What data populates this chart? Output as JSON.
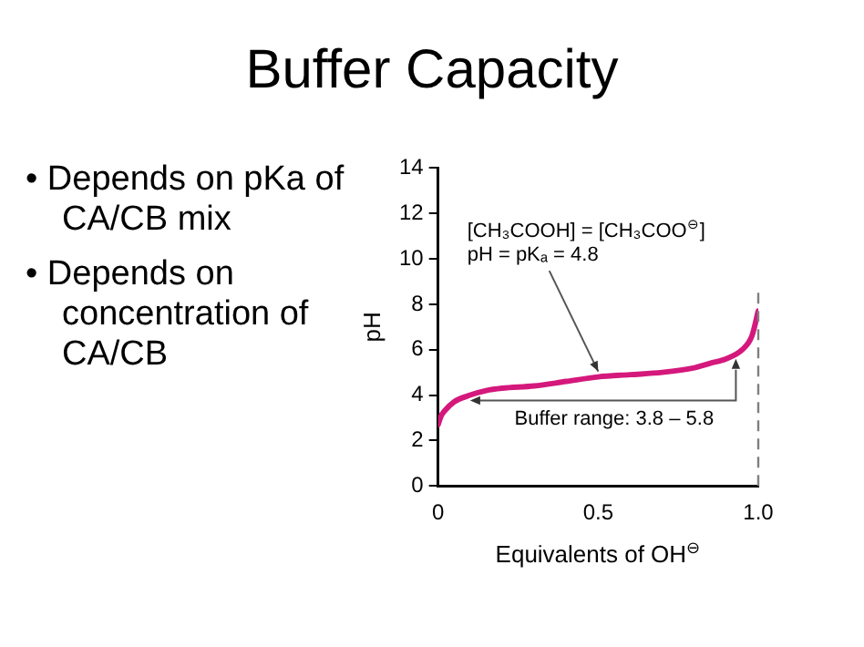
{
  "chart_data": {
    "type": "line",
    "title": "Buffer Capacity",
    "xlabel": "Equivalents of OH$^{⊖}$",
    "ylabel": "pH",
    "x": [
      0,
      0.01,
      0.02,
      0.05,
      0.1,
      0.15,
      0.2,
      0.3,
      0.4,
      0.5,
      0.6,
      0.7,
      0.8,
      0.85,
      0.9,
      0.95,
      0.98,
      1.0
    ],
    "series": [
      {
        "color": "#d4187c",
        "values": [
          2.7,
          3.1,
          3.3,
          3.7,
          4.0,
          4.2,
          4.3,
          4.4,
          4.6,
          4.8,
          4.9,
          5.0,
          5.2,
          5.4,
          5.6,
          6.0,
          6.6,
          7.7
        ]
      }
    ],
    "xlim": [
      0,
      1
    ],
    "xticks": [
      0,
      0.5,
      {
        "value": 1,
        "label": "1.0"
      }
    ],
    "ylim": [
      0,
      14
    ],
    "yticks": [
      0,
      2,
      4,
      6,
      8,
      10,
      12,
      14
    ],
    "grid": false,
    "legend": false,
    "marker": "none",
    "line_style": "solid",
    "ref_lines": [
      {
        "axis": "x",
        "value": 1,
        "color": "#808080",
        "line_style": "dashed"
      }
    ],
    "annotations": [
      "• Depends on pKa of CA/CB mix",
      "• Depends on concentration of CA/CB",
      "[CH₃COOH] = [CH₃COO$^{⊖}$]",
      {
        "text": "pH = pKₐ = 4.8",
        "x": 0.5,
        "y": 4.8
      },
      "Buffer range: 3.8 – 5.8"
    ]
  }
}
